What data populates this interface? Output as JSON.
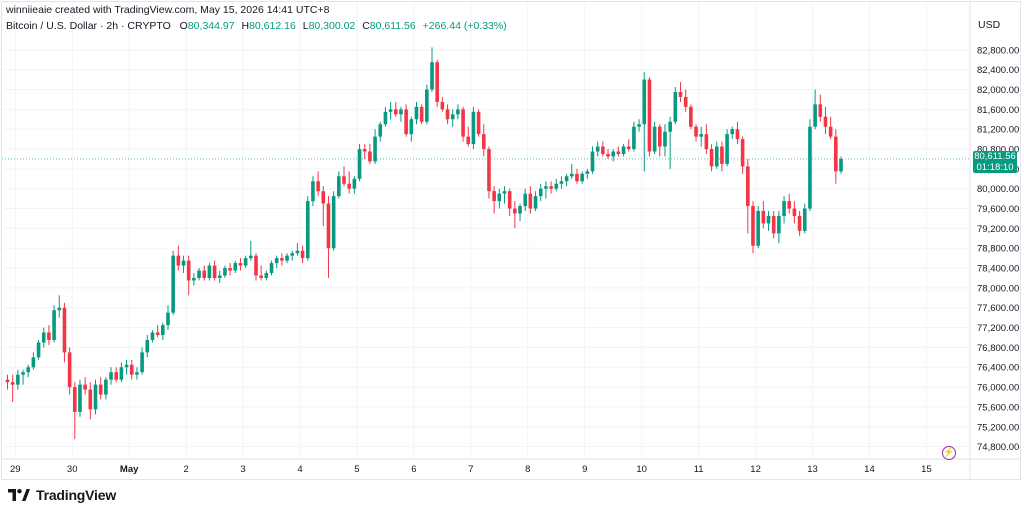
{
  "header": {
    "creator": "winniieaie created with TradingView.com, May 15, 2026 14:41 UTC+8",
    "symbol": "Bitcoin / U.S. Dollar · 2h · CRYPTO",
    "open_label": "O",
    "open": "80,344.97",
    "high_label": "H",
    "high": "80,612.16",
    "low_label": "L",
    "low": "80,300.02",
    "close_label": "C",
    "close": "80,611.56",
    "change": "+266.44 (+0.33%)"
  },
  "currency": "USD",
  "last_price": {
    "price": "80,611.56",
    "countdown": "01:18:10"
  },
  "logo": {
    "text": "TradingView"
  },
  "colors": {
    "up": "#089981",
    "down": "#f23645",
    "grid": "#f0f3fa",
    "axis_text": "#131722"
  },
  "chart_data": {
    "type": "candlestick",
    "interval": "2h",
    "y_ticks": [
      74800,
      75200,
      75600,
      76000,
      76400,
      76800,
      77200,
      77600,
      78000,
      78400,
      78800,
      79200,
      79600,
      80000,
      80400,
      80800,
      81200,
      81600,
      82000,
      82400,
      82800
    ],
    "y_tick_labels": [
      "74,800.00",
      "75,200.00",
      "75,600.00",
      "76,000.00",
      "76,400.00",
      "76,800.00",
      "77,200.00",
      "77,600.00",
      "78,000.00",
      "78,400.00",
      "78,800.00",
      "79,200.00",
      "79,600.00",
      "80,000.00",
      "80,400.00",
      "80,800.00",
      "81,200.00",
      "81,600.00",
      "82,000.00",
      "82,400.00",
      "82,800.00"
    ],
    "ylim": [
      74550,
      83200
    ],
    "x_ticks": [
      {
        "label": "29",
        "index": 1.5,
        "bold": false
      },
      {
        "label": "30",
        "index": 12.5,
        "bold": false
      },
      {
        "label": "May",
        "index": 23.5,
        "bold": true
      },
      {
        "label": "2",
        "index": 34.5,
        "bold": false
      },
      {
        "label": "3",
        "index": 45.5,
        "bold": false
      },
      {
        "label": "4",
        "index": 56.5,
        "bold": false
      },
      {
        "label": "5",
        "index": 67.5,
        "bold": false
      },
      {
        "label": "6",
        "index": 78.5,
        "bold": false
      },
      {
        "label": "7",
        "index": 89.5,
        "bold": false
      },
      {
        "label": "8",
        "index": 100.5,
        "bold": false
      },
      {
        "label": "9",
        "index": 111.5,
        "bold": false
      },
      {
        "label": "10",
        "index": 122.5,
        "bold": false
      },
      {
        "label": "11",
        "index": 133.5,
        "bold": false
      },
      {
        "label": "12",
        "index": 144.5,
        "bold": false
      },
      {
        "label": "13",
        "index": 155.5,
        "bold": false
      },
      {
        "label": "14",
        "index": 166.5,
        "bold": false
      },
      {
        "label": "15",
        "index": 177.5,
        "bold": false
      }
    ],
    "candles": [
      [
        76150,
        76250,
        75950,
        76100
      ],
      [
        76100,
        76250,
        75700,
        76050
      ],
      [
        76050,
        76350,
        75950,
        76250
      ],
      [
        76250,
        76350,
        76050,
        76300
      ],
      [
        76300,
        76450,
        76200,
        76400
      ],
      [
        76400,
        76700,
        76350,
        76600
      ],
      [
        76600,
        76950,
        76550,
        76900
      ],
      [
        76900,
        77200,
        76800,
        77100
      ],
      [
        77100,
        77250,
        76850,
        76950
      ],
      [
        76950,
        77650,
        76900,
        77550
      ],
      [
        77550,
        77850,
        77400,
        77600
      ],
      [
        77600,
        77700,
        76500,
        76700
      ],
      [
        76700,
        76800,
        75850,
        76000
      ],
      [
        76000,
        76100,
        74950,
        75500
      ],
      [
        75500,
        76150,
        75400,
        76050
      ],
      [
        76050,
        76200,
        75850,
        75950
      ],
      [
        75950,
        76100,
        75350,
        75550
      ],
      [
        75550,
        76150,
        75450,
        76050
      ],
      [
        76050,
        76200,
        75750,
        75850
      ],
      [
        75850,
        76200,
        75750,
        76150
      ],
      [
        76150,
        76400,
        76050,
        76300
      ],
      [
        76300,
        76400,
        76100,
        76150
      ],
      [
        76150,
        76500,
        76100,
        76400
      ],
      [
        76400,
        76550,
        76250,
        76450
      ],
      [
        76450,
        76550,
        76150,
        76250
      ],
      [
        76250,
        76400,
        76150,
        76300
      ],
      [
        76300,
        76800,
        76250,
        76700
      ],
      [
        76700,
        77050,
        76600,
        76950
      ],
      [
        76950,
        77150,
        76900,
        77100
      ],
      [
        77100,
        77250,
        77000,
        77050
      ],
      [
        77050,
        77300,
        76950,
        77250
      ],
      [
        77250,
        77650,
        77150,
        77500
      ],
      [
        77500,
        78750,
        77450,
        78650
      ],
      [
        78650,
        78850,
        78350,
        78450
      ],
      [
        78450,
        78650,
        78300,
        78550
      ],
      [
        78550,
        78650,
        77850,
        78150
      ],
      [
        78150,
        78300,
        78050,
        78200
      ],
      [
        78200,
        78400,
        78150,
        78350
      ],
      [
        78350,
        78450,
        78150,
        78200
      ],
      [
        78200,
        78500,
        78150,
        78450
      ],
      [
        78450,
        78550,
        78150,
        78200
      ],
      [
        78200,
        78350,
        78100,
        78250
      ],
      [
        78250,
        78450,
        78200,
        78400
      ],
      [
        78400,
        78500,
        78250,
        78350
      ],
      [
        78350,
        78550,
        78300,
        78500
      ],
      [
        78500,
        78600,
        78350,
        78450
      ],
      [
        78450,
        78650,
        78400,
        78600
      ],
      [
        78600,
        78950,
        78550,
        78650
      ],
      [
        78650,
        78700,
        78150,
        78250
      ],
      [
        78250,
        78450,
        78150,
        78200
      ],
      [
        78200,
        78350,
        78150,
        78300
      ],
      [
        78300,
        78550,
        78250,
        78500
      ],
      [
        78500,
        78650,
        78400,
        78600
      ],
      [
        78600,
        78700,
        78450,
        78550
      ],
      [
        78550,
        78700,
        78500,
        78650
      ],
      [
        78650,
        78750,
        78550,
        78700
      ],
      [
        78700,
        78900,
        78650,
        78750
      ],
      [
        78750,
        78850,
        78500,
        78600
      ],
      [
        78600,
        79850,
        78550,
        79750
      ],
      [
        79750,
        80250,
        79650,
        80150
      ],
      [
        80150,
        80350,
        79850,
        79950
      ],
      [
        79950,
        80050,
        79250,
        79700
      ],
      [
        79700,
        79850,
        78200,
        78800
      ],
      [
        78800,
        79950,
        78750,
        79850
      ],
      [
        79850,
        80350,
        79800,
        80250
      ],
      [
        80250,
        80450,
        80050,
        80100
      ],
      [
        80100,
        80350,
        79900,
        80000
      ],
      [
        80000,
        80250,
        79900,
        80200
      ],
      [
        80200,
        80900,
        80150,
        80800
      ],
      [
        80800,
        80900,
        80600,
        80750
      ],
      [
        80750,
        80900,
        80500,
        80550
      ],
      [
        80550,
        81200,
        80500,
        81050
      ],
      [
        81050,
        81350,
        80950,
        81300
      ],
      [
        81300,
        81650,
        81250,
        81550
      ],
      [
        81550,
        81750,
        81400,
        81600
      ],
      [
        81600,
        81750,
        81450,
        81500
      ],
      [
        81500,
        81650,
        81350,
        81600
      ],
      [
        81600,
        81700,
        81050,
        81100
      ],
      [
        81100,
        81450,
        80950,
        81400
      ],
      [
        81400,
        81750,
        81300,
        81650
      ],
      [
        81650,
        81700,
        81300,
        81350
      ],
      [
        81350,
        82100,
        81300,
        82000
      ],
      [
        82000,
        82850,
        81950,
        82550
      ],
      [
        82550,
        82600,
        81650,
        81750
      ],
      [
        81750,
        81850,
        81550,
        81600
      ],
      [
        81600,
        81700,
        81300,
        81400
      ],
      [
        81400,
        81600,
        81250,
        81500
      ],
      [
        81500,
        81700,
        81400,
        81600
      ],
      [
        81600,
        81650,
        80950,
        81050
      ],
      [
        81050,
        81250,
        80850,
        80900
      ],
      [
        80900,
        81650,
        80800,
        81550
      ],
      [
        81550,
        81600,
        81050,
        81100
      ],
      [
        81100,
        81300,
        80650,
        80800
      ],
      [
        80800,
        80850,
        79800,
        79950
      ],
      [
        79950,
        80050,
        79500,
        79750
      ],
      [
        79750,
        80000,
        79600,
        79900
      ],
      [
        79900,
        80050,
        79700,
        79950
      ],
      [
        79950,
        80000,
        79450,
        79600
      ],
      [
        79600,
        79750,
        79200,
        79500
      ],
      [
        79500,
        79700,
        79350,
        79650
      ],
      [
        79650,
        80000,
        79550,
        79900
      ],
      [
        79900,
        80050,
        79500,
        79600
      ],
      [
        79600,
        79950,
        79550,
        79850
      ],
      [
        79850,
        80100,
        79750,
        80000
      ],
      [
        80000,
        80150,
        79800,
        80050
      ],
      [
        80050,
        80150,
        79900,
        80000
      ],
      [
        80000,
        80200,
        79950,
        80100
      ],
      [
        80100,
        80250,
        80000,
        80150
      ],
      [
        80150,
        80300,
        80050,
        80250
      ],
      [
        80250,
        80500,
        80200,
        80300
      ],
      [
        80300,
        80400,
        80100,
        80150
      ],
      [
        80150,
        80350,
        80100,
        80300
      ],
      [
        80300,
        80400,
        80200,
        80350
      ],
      [
        80350,
        80850,
        80300,
        80750
      ],
      [
        80750,
        80950,
        80650,
        80850
      ],
      [
        80850,
        80950,
        80650,
        80700
      ],
      [
        80700,
        80800,
        80600,
        80650
      ],
      [
        80650,
        80800,
        80550,
        80750
      ],
      [
        80750,
        80850,
        80650,
        80700
      ],
      [
        80700,
        80900,
        80650,
        80850
      ],
      [
        80850,
        81000,
        80750,
        80800
      ],
      [
        80800,
        81350,
        80750,
        81250
      ],
      [
        81250,
        81400,
        81150,
        81300
      ],
      [
        81300,
        82350,
        80350,
        82200
      ],
      [
        82200,
        82250,
        80650,
        80750
      ],
      [
        80750,
        81350,
        80700,
        81250
      ],
      [
        81250,
        81300,
        80650,
        80850
      ],
      [
        80850,
        81300,
        80650,
        81150
      ],
      [
        81150,
        81450,
        80400,
        81350
      ],
      [
        81350,
        82050,
        81300,
        81950
      ],
      [
        81950,
        82150,
        81750,
        81850
      ],
      [
        81850,
        82000,
        81550,
        81650
      ],
      [
        81650,
        81700,
        81200,
        81250
      ],
      [
        81250,
        81300,
        80950,
        81050
      ],
      [
        81050,
        81250,
        80850,
        81100
      ],
      [
        81100,
        81300,
        80700,
        80800
      ],
      [
        80800,
        80900,
        80350,
        80450
      ],
      [
        80450,
        80950,
        80400,
        80850
      ],
      [
        80850,
        80950,
        80350,
        80500
      ],
      [
        80500,
        81200,
        80450,
        81100
      ],
      [
        81100,
        81250,
        81000,
        81200
      ],
      [
        81200,
        81350,
        80900,
        81000
      ],
      [
        81000,
        81050,
        80300,
        80450
      ],
      [
        80450,
        80600,
        79100,
        79650
      ],
      [
        79650,
        79750,
        78700,
        78850
      ],
      [
        78850,
        79650,
        78800,
        79550
      ],
      [
        79550,
        79750,
        79200,
        79300
      ],
      [
        79300,
        79550,
        79150,
        79450
      ],
      [
        79450,
        79550,
        79000,
        79100
      ],
      [
        79100,
        79550,
        78900,
        79450
      ],
      [
        79450,
        79850,
        79300,
        79750
      ],
      [
        79750,
        79900,
        79500,
        79600
      ],
      [
        79600,
        79750,
        79300,
        79450
      ],
      [
        79450,
        79550,
        79050,
        79150
      ],
      [
        79150,
        79700,
        79100,
        79600
      ],
      [
        79600,
        81400,
        79550,
        81250
      ],
      [
        81250,
        82000,
        81200,
        81700
      ],
      [
        81700,
        81900,
        81350,
        81450
      ],
      [
        81450,
        81650,
        81100,
        81250
      ],
      [
        81250,
        81450,
        81000,
        81050
      ],
      [
        81050,
        81200,
        80100,
        80350
      ],
      [
        80350,
        80650,
        80300,
        80600
      ]
    ]
  }
}
